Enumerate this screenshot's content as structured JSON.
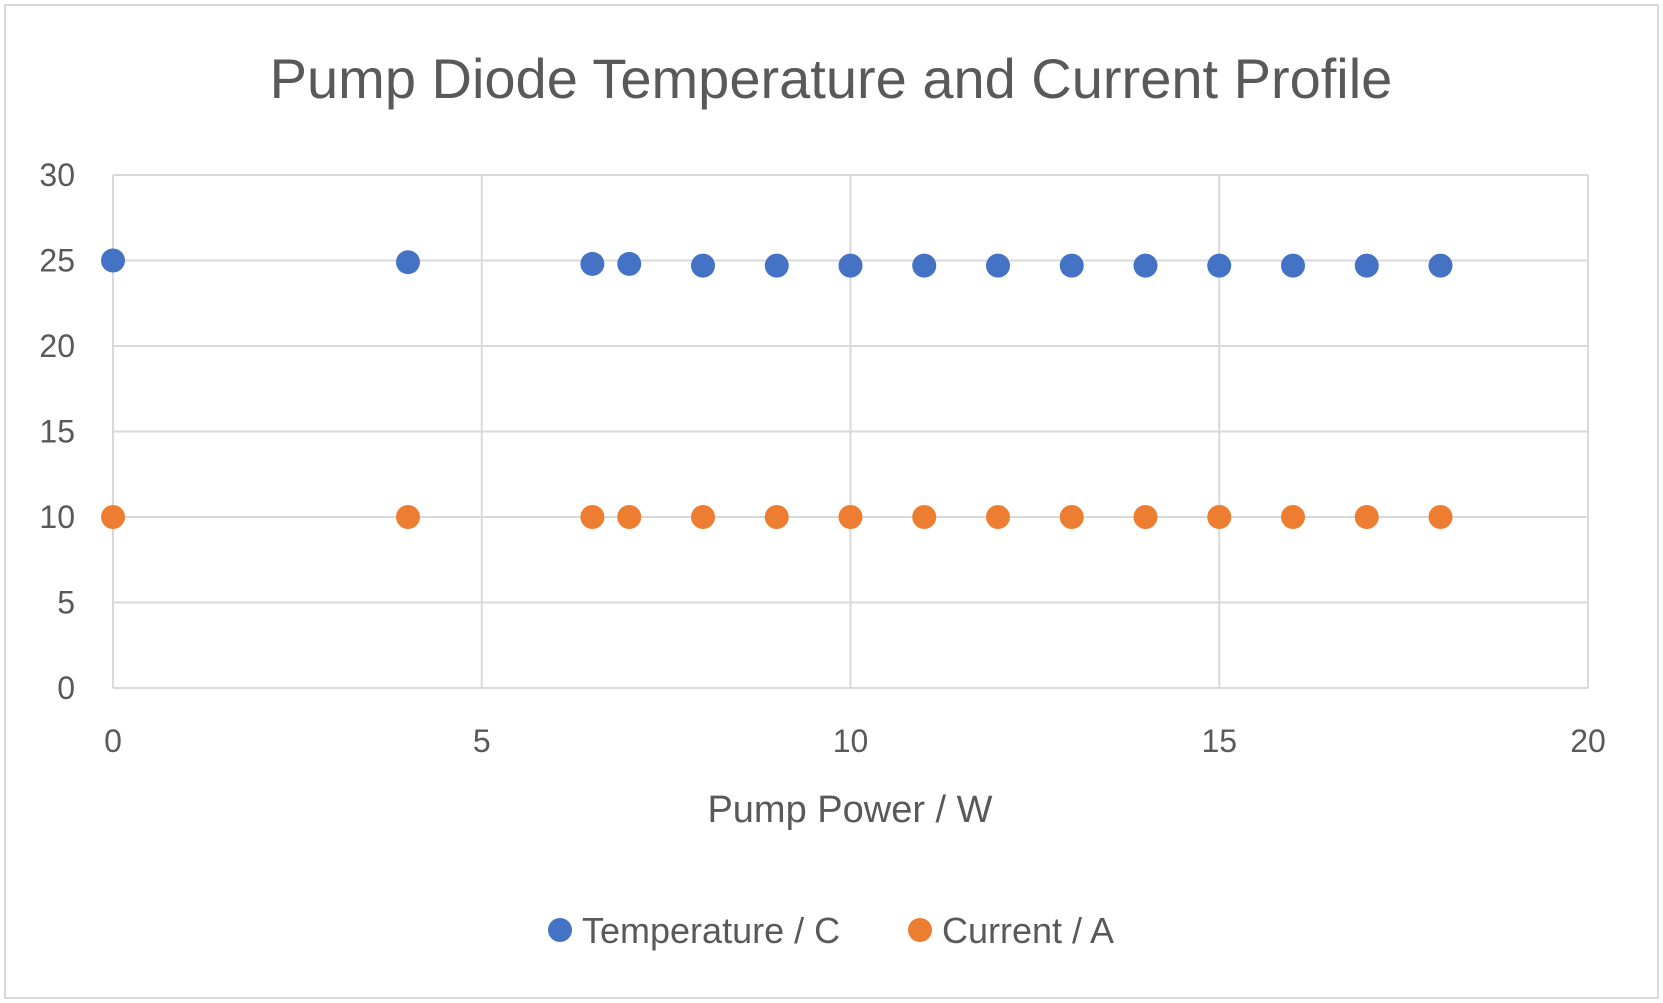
{
  "chart_data": {
    "type": "scatter",
    "title": "Pump Diode Temperature and Current Profile",
    "xlabel": "Pump Power / W",
    "ylabel": "",
    "xlim": [
      0,
      20
    ],
    "ylim": [
      0,
      30
    ],
    "xticks": [
      "0",
      "5",
      "10",
      "15",
      "20"
    ],
    "yticks": [
      "0",
      "5",
      "10",
      "15",
      "20",
      "25",
      "30"
    ],
    "grid": true,
    "legend_position": "bottom",
    "series": [
      {
        "name": "Temperature / C",
        "color": "#4472C4",
        "x": [
          0,
          4,
          6.5,
          7,
          8,
          9,
          10,
          11,
          12,
          13,
          14,
          15,
          16,
          17,
          18
        ],
        "y": [
          25.0,
          24.9,
          24.8,
          24.8,
          24.7,
          24.7,
          24.7,
          24.7,
          24.7,
          24.7,
          24.7,
          24.7,
          24.7,
          24.7,
          24.7
        ]
      },
      {
        "name": "Current / A",
        "color": "#ED7D31",
        "x": [
          0,
          4,
          6.5,
          7,
          8,
          9,
          10,
          11,
          12,
          13,
          14,
          15,
          16,
          17,
          18
        ],
        "y": [
          10,
          10,
          10,
          10,
          10,
          10,
          10,
          10,
          10,
          10,
          10,
          10,
          10,
          10,
          10
        ]
      }
    ]
  }
}
